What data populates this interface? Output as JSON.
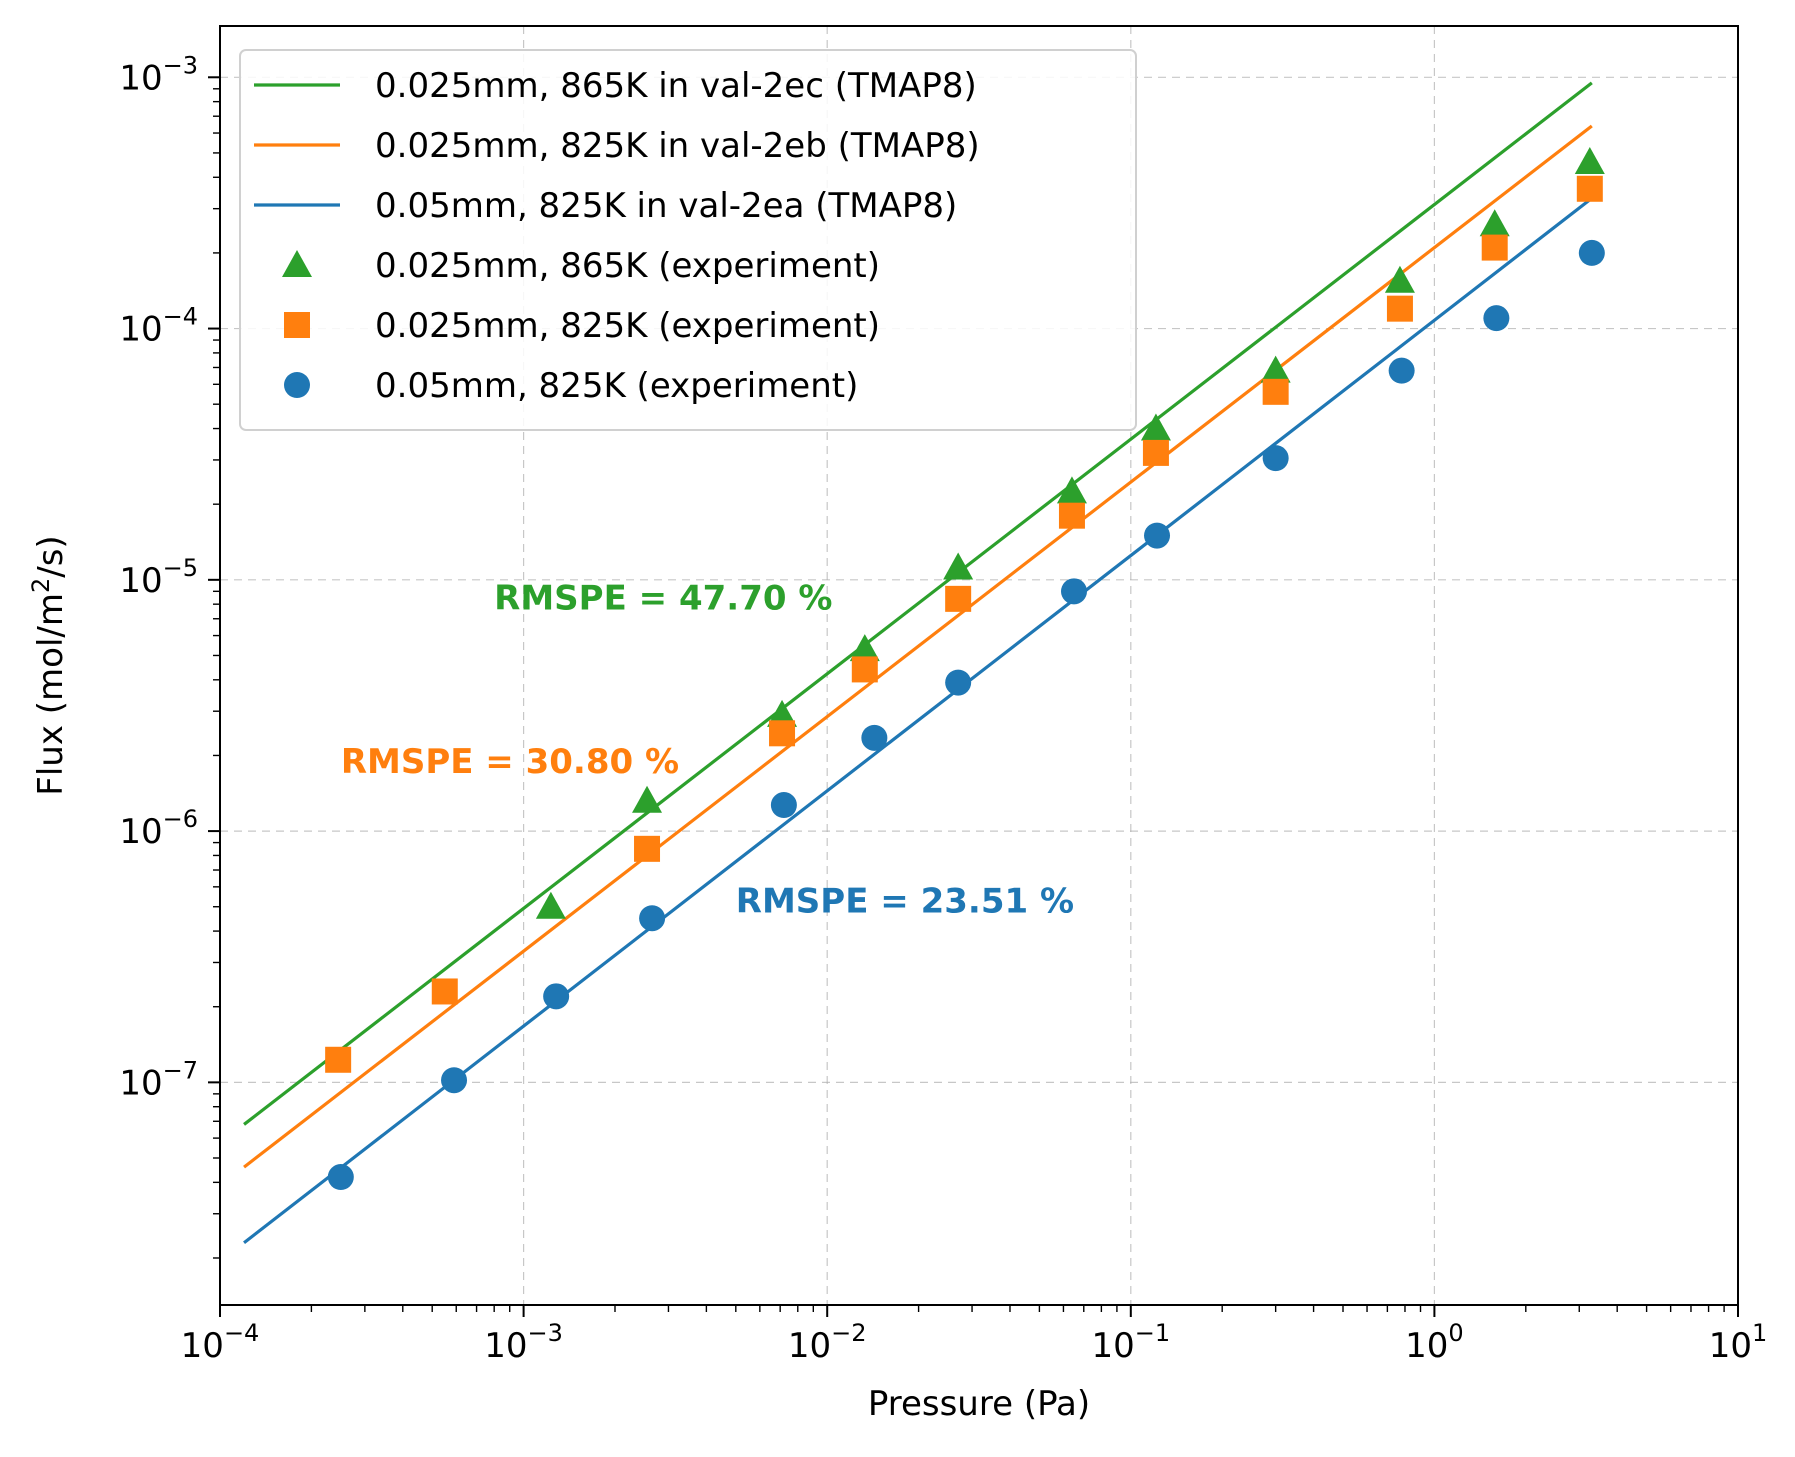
{
  "chart_data": {
    "type": "scatter",
    "xlabel": "Pressure (Pa)",
    "ylabel_main": "Flux (mol/m",
    "ylabel_sup": "2",
    "ylabel_tail": "/s)",
    "xscale": "log",
    "yscale": "log",
    "xlim": [
      0.0001,
      10
    ],
    "ylim": [
      1.3e-08,
      0.0016
    ],
    "grid": true,
    "legend_position": "upper-left",
    "x_ticks": [
      {
        "value": 0.0001,
        "base": "10",
        "exp": "−4"
      },
      {
        "value": 0.001,
        "base": "10",
        "exp": "−3"
      },
      {
        "value": 0.01,
        "base": "10",
        "exp": "−2"
      },
      {
        "value": 0.1,
        "base": "10",
        "exp": "−1"
      },
      {
        "value": 1,
        "base": "10",
        "exp": "0"
      },
      {
        "value": 10,
        "base": "10",
        "exp": "1"
      }
    ],
    "y_ticks": [
      {
        "value": 1e-07,
        "base": "10",
        "exp": "−7"
      },
      {
        "value": 1e-06,
        "base": "10",
        "exp": "−6"
      },
      {
        "value": 1e-05,
        "base": "10",
        "exp": "−5"
      },
      {
        "value": 0.0001,
        "base": "10",
        "exp": "−4"
      },
      {
        "value": 0.001,
        "base": "10",
        "exp": "−3"
      }
    ],
    "series": [
      {
        "name": "0.025mm, 865K in val-2ec (TMAP8)",
        "kind": "line",
        "color": "#2ca02c",
        "x": [
          0.00012,
          3.3
        ],
        "y": [
          6.8e-08,
          0.00095
        ]
      },
      {
        "name": "0.025mm, 825K in val-2eb (TMAP8)",
        "kind": "line",
        "color": "#ff7f0e",
        "x": [
          0.00012,
          3.3
        ],
        "y": [
          4.6e-08,
          0.00064
        ]
      },
      {
        "name": "0.05mm, 825K in val-2ea (TMAP8)",
        "kind": "line",
        "color": "#1f77b4",
        "x": [
          0.00012,
          3.3
        ],
        "y": [
          2.3e-08,
          0.00033
        ]
      },
      {
        "name": "0.025mm, 865K (experiment)",
        "kind": "marker",
        "marker": "triangle",
        "color": "#2ca02c",
        "x": [
          0.00123,
          0.00255,
          0.0071,
          0.0133,
          0.027,
          0.064,
          0.121,
          0.3,
          0.77,
          1.58,
          3.25
        ],
        "y": [
          5e-07,
          1.32e-06,
          2.9e-06,
          5.3e-06,
          1.12e-05,
          2.25e-05,
          4e-05,
          6.8e-05,
          0.000155,
          0.00026,
          0.00046
        ]
      },
      {
        "name": "0.025mm, 825K (experiment)",
        "kind": "marker",
        "marker": "square",
        "color": "#ff7f0e",
        "x": [
          0.000245,
          0.00055,
          0.00255,
          0.0071,
          0.0133,
          0.027,
          0.064,
          0.121,
          0.3,
          0.77,
          1.58,
          3.25
        ],
        "y": [
          1.23e-07,
          2.3e-07,
          8.5e-07,
          2.45e-06,
          4.4e-06,
          8.4e-06,
          1.8e-05,
          3.2e-05,
          5.6e-05,
          0.00012,
          0.00021,
          0.00036
        ]
      },
      {
        "name": "0.05mm, 825K (experiment)",
        "kind": "marker",
        "marker": "circle",
        "color": "#1f77b4",
        "x": [
          0.00025,
          0.00059,
          0.00128,
          0.00265,
          0.0072,
          0.0143,
          0.027,
          0.065,
          0.122,
          0.3,
          0.78,
          1.6,
          3.3
        ],
        "y": [
          4.2e-08,
          1.02e-07,
          2.2e-07,
          4.5e-07,
          1.27e-06,
          2.35e-06,
          3.9e-06,
          9e-06,
          1.5e-05,
          3.05e-05,
          6.8e-05,
          0.00011,
          0.0002
        ]
      }
    ],
    "annotations": [
      {
        "text": "RMSPE = 47.70 %",
        "color": "#2ca02c",
        "x": 0.0008,
        "y": 8.5e-06
      },
      {
        "text": "RMSPE = 30.80 %",
        "color": "#ff7f0e",
        "x": 0.00025,
        "y": 1.9e-06
      },
      {
        "text": "RMSPE = 23.51 %",
        "color": "#1f77b4",
        "x": 0.005,
        "y": 5.3e-07
      }
    ]
  }
}
